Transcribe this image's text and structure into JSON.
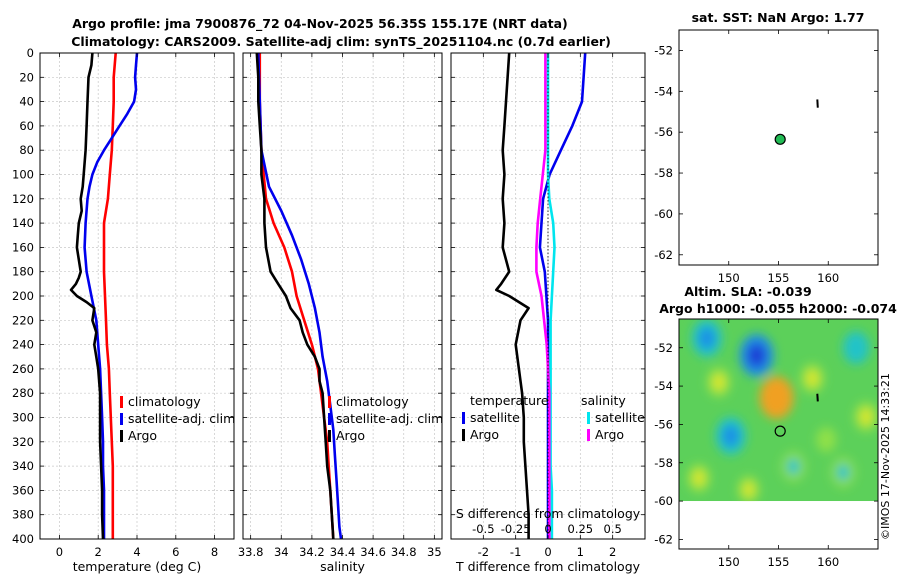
{
  "title_line1": "Argo profile: jma 7900876_72 04-Nov-2025 56.35S 155.17E (NRT data)",
  "title_line2": "Climatology: CARS2009. Satellite-adj clim: synTS_20251104.nc (0.7d earlier)",
  "stamp": "©IMOS 17-Nov-2025 14:33:21",
  "colors": {
    "climatology": "#ff0000",
    "satellite": "#0000ee",
    "argo": "#000000",
    "sal_satellite": "#00e5ee",
    "sal_argo": "#ff00ff",
    "marker": "#22bb55"
  },
  "chart_data": [
    {
      "type": "line",
      "id": "temperature",
      "xlabel": "temperature (deg C)",
      "ylabel": "",
      "xlim": [
        -1,
        9
      ],
      "ylim": [
        400,
        0
      ],
      "xticks": [
        0,
        2,
        4,
        6,
        8
      ],
      "xtick_labels": [
        "0",
        "2",
        "4",
        "6",
        "8"
      ],
      "yticks": [
        0,
        20,
        40,
        60,
        80,
        100,
        120,
        140,
        160,
        180,
        200,
        220,
        240,
        260,
        280,
        300,
        320,
        340,
        360,
        380,
        400
      ],
      "ytick_labels": [
        "0",
        "20",
        "40",
        "60",
        "80",
        "100",
        "120",
        "140",
        "160",
        "180",
        "200",
        "220",
        "240",
        "260",
        "280",
        "300",
        "320",
        "340",
        "360",
        "380",
        "400"
      ],
      "legend": [
        "climatology",
        "satellite-adj. clim",
        "Argo"
      ],
      "series": [
        {
          "name": "climatology",
          "color": "#ff0000",
          "depth": [
            0,
            20,
            40,
            60,
            80,
            100,
            120,
            140,
            160,
            180,
            200,
            220,
            240,
            260,
            280,
            300,
            320,
            340,
            360,
            380,
            400
          ],
          "values": [
            2.9,
            2.8,
            2.8,
            2.75,
            2.7,
            2.6,
            2.5,
            2.3,
            2.3,
            2.3,
            2.35,
            2.4,
            2.45,
            2.55,
            2.6,
            2.65,
            2.7,
            2.75,
            2.75,
            2.75,
            2.75
          ]
        },
        {
          "name": "satellite-adj. clim",
          "color": "#0000ee",
          "depth": [
            0,
            10,
            20,
            30,
            40,
            50,
            60,
            70,
            80,
            90,
            100,
            110,
            120,
            140,
            160,
            180,
            200,
            220,
            240,
            260,
            280,
            300,
            320,
            340,
            360,
            380,
            400
          ],
          "values": [
            4.0,
            3.95,
            3.9,
            3.95,
            3.85,
            3.5,
            3.1,
            2.7,
            2.3,
            1.95,
            1.7,
            1.55,
            1.45,
            1.35,
            1.3,
            1.4,
            1.65,
            1.9,
            2.0,
            2.1,
            2.15,
            2.2,
            2.25,
            2.25,
            2.3,
            2.3,
            2.3
          ]
        },
        {
          "name": "Argo",
          "color": "#000000",
          "depth": [
            0,
            10,
            20,
            40,
            60,
            80,
            100,
            110,
            120,
            130,
            140,
            150,
            160,
            170,
            180,
            185,
            190,
            195,
            200,
            205,
            210,
            220,
            230,
            240,
            250,
            260,
            280,
            300,
            320,
            340,
            360,
            380,
            400
          ],
          "values": [
            1.7,
            1.65,
            1.5,
            1.45,
            1.4,
            1.35,
            1.25,
            1.2,
            1.1,
            1.15,
            1.0,
            0.95,
            0.9,
            1.0,
            1.1,
            1.0,
            0.85,
            0.6,
            0.9,
            1.4,
            1.8,
            1.7,
            1.9,
            1.8,
            1.9,
            2.0,
            2.1,
            2.1,
            2.1,
            2.15,
            2.2,
            2.2,
            2.25
          ]
        }
      ]
    },
    {
      "type": "line",
      "id": "salinity",
      "xlabel": "salinity",
      "xlim": [
        33.75,
        35.05
      ],
      "ylim": [
        400,
        0
      ],
      "xticks": [
        33.8,
        34,
        34.2,
        34.4,
        34.6,
        34.8,
        35
      ],
      "xtick_labels": [
        "33.8",
        "34",
        "34.2",
        "34.4",
        "34.6",
        "34.8",
        "35"
      ],
      "legend": [
        "climatology",
        "satellite-adj. clim",
        "Argo"
      ],
      "series": [
        {
          "name": "climatology",
          "color": "#ff0000",
          "depth": [
            0,
            40,
            80,
            120,
            140,
            160,
            180,
            200,
            220,
            240,
            260,
            280,
            300,
            320,
            340,
            360,
            380,
            400
          ],
          "values": [
            33.86,
            33.86,
            33.87,
            33.9,
            33.95,
            34.02,
            34.07,
            34.1,
            34.15,
            34.2,
            34.24,
            34.26,
            34.28,
            34.3,
            34.31,
            34.32,
            34.33,
            34.34
          ]
        },
        {
          "name": "satellite-adj. clim",
          "color": "#0000ee",
          "depth": [
            0,
            40,
            80,
            110,
            130,
            150,
            170,
            190,
            210,
            230,
            250,
            270,
            290,
            310,
            330,
            350,
            370,
            390,
            400
          ],
          "values": [
            33.85,
            33.86,
            33.87,
            33.92,
            34.0,
            34.07,
            34.13,
            34.18,
            34.22,
            34.25,
            34.27,
            34.3,
            34.32,
            34.34,
            34.35,
            34.36,
            34.37,
            34.38,
            34.39
          ]
        },
        {
          "name": "Argo",
          "color": "#000000",
          "depth": [
            0,
            20,
            40,
            60,
            80,
            100,
            120,
            140,
            160,
            180,
            190,
            200,
            210,
            220,
            230,
            240,
            250,
            260,
            270,
            280,
            300,
            320,
            340,
            360,
            380,
            400
          ],
          "values": [
            33.84,
            33.85,
            33.85,
            33.86,
            33.87,
            33.87,
            33.89,
            33.89,
            33.9,
            33.93,
            33.98,
            34.03,
            34.06,
            34.12,
            34.14,
            34.17,
            34.22,
            34.25,
            34.25,
            34.27,
            34.28,
            34.29,
            34.3,
            34.32,
            34.33,
            34.34
          ]
        }
      ]
    },
    {
      "type": "line",
      "id": "difference",
      "xlabel": "T difference from climatology",
      "x2label": "S difference from climatology",
      "xlim": [
        -3,
        3
      ],
      "ylim": [
        400,
        0
      ],
      "xticks": [
        -2,
        -1,
        0,
        1,
        2
      ],
      "xtick_labels": [
        "-2",
        "-1",
        "0",
        "1",
        "2"
      ],
      "x2ticks": [
        -0.5,
        -0.25,
        0,
        0.25,
        0.5
      ],
      "x2tick_labels": [
        "-0.5",
        "-0.25",
        "0",
        "0.25",
        "0.5"
      ],
      "legend_titles": [
        "temperature",
        "salinity"
      ],
      "legend": [
        "satellite",
        "Argo",
        "satellite",
        "Argo"
      ],
      "series": [
        {
          "name": "T satellite",
          "color": "#0000ee",
          "depth": [
            0,
            20,
            40,
            60,
            80,
            100,
            120,
            140,
            160,
            180,
            200,
            220,
            240,
            260,
            280,
            300,
            400
          ],
          "values": [
            1.15,
            1.1,
            1.05,
            0.75,
            0.4,
            0.05,
            -0.15,
            -0.2,
            -0.25,
            -0.1,
            -0.05,
            0,
            0,
            0,
            0,
            0,
            0
          ]
        },
        {
          "name": "T Argo",
          "color": "#000000",
          "depth": [
            0,
            20,
            40,
            60,
            80,
            100,
            120,
            140,
            160,
            180,
            190,
            195,
            200,
            210,
            220,
            240,
            260,
            280,
            300,
            320,
            340,
            360,
            380,
            400
          ],
          "values": [
            -1.2,
            -1.25,
            -1.3,
            -1.35,
            -1.4,
            -1.35,
            -1.4,
            -1.35,
            -1.4,
            -1.2,
            -1.45,
            -1.6,
            -1.2,
            -0.6,
            -0.85,
            -1.0,
            -0.9,
            -0.8,
            -0.75,
            -0.75,
            -0.7,
            -0.65,
            -0.6,
            -0.6
          ]
        },
        {
          "name": "S satellite",
          "color": "#00e5ee",
          "depth": [
            0,
            40,
            80,
            100,
            120,
            140,
            160,
            180,
            200,
            220,
            240,
            260,
            280,
            300,
            320,
            340,
            360,
            380,
            400
          ],
          "values": [
            0,
            0,
            0,
            0,
            0.01,
            0.04,
            0.05,
            0.04,
            0.03,
            0.02,
            0.02,
            0.02,
            0.02,
            0.02,
            0.02,
            0.02,
            0.03,
            0.03,
            0.03
          ]
        },
        {
          "name": "S Argo",
          "color": "#ff00ff",
          "depth": [
            0,
            40,
            80,
            100,
            120,
            140,
            160,
            180,
            200,
            220,
            240,
            260,
            280,
            300,
            320,
            340,
            360,
            380,
            400
          ],
          "values": [
            -0.02,
            -0.02,
            -0.02,
            -0.04,
            -0.06,
            -0.08,
            -0.09,
            -0.09,
            -0.05,
            -0.03,
            -0.01,
            0,
            0.01,
            0.01,
            0.01,
            0.01,
            0.01,
            0.01,
            0.01
          ]
        }
      ]
    },
    {
      "type": "scatter",
      "id": "sst_map",
      "title": "sat. SST: NaN Argo: 1.77",
      "xlim": [
        145,
        165
      ],
      "ylim": [
        -62.5,
        -51
      ],
      "xticks": [
        150,
        155,
        160
      ],
      "xtick_labels": [
        "150",
        "155",
        "160"
      ],
      "yticks": [
        -52,
        -54,
        -56,
        -58,
        -60,
        -62
      ],
      "ytick_labels": [
        "-52",
        "-54",
        "-56",
        "-58",
        "-60",
        "-62"
      ],
      "argo_position": {
        "lon": 155.17,
        "lat": -56.35
      },
      "track": [
        {
          "lon": 158.9,
          "lat": -54.4
        },
        {
          "lon": 158.95,
          "lat": -54.8
        }
      ]
    },
    {
      "type": "heatmap",
      "id": "sla_map",
      "title1": "Altim. SLA: -0.039",
      "title2": "Argo h1000: -0.055 h2000: -0.074",
      "xlim": [
        145,
        165
      ],
      "ylim": [
        -62.5,
        -50.5
      ],
      "data_extent_lat": [
        -60,
        -50.5
      ],
      "xticks": [
        150,
        155,
        160
      ],
      "xtick_labels": [
        "150",
        "155",
        "160"
      ],
      "yticks": [
        -52,
        -54,
        -56,
        -58,
        -60,
        -62
      ],
      "ytick_labels": [
        "-52",
        "-54",
        "-56",
        "-58",
        "-60",
        "-62"
      ],
      "argo_position": {
        "lon": 155.17,
        "lat": -56.35
      },
      "track": [
        {
          "lon": 158.9,
          "lat": -54.4
        },
        {
          "lon": 158.95,
          "lat": -54.8
        }
      ],
      "blobs": [
        {
          "lon": 152.8,
          "lat": -52.4,
          "value": -0.9
        },
        {
          "lon": 147.8,
          "lat": -51.5,
          "value": -0.7
        },
        {
          "lon": 150.2,
          "lat": -56.6,
          "value": -0.7
        },
        {
          "lon": 162.8,
          "lat": -52.0,
          "value": -0.5
        },
        {
          "lon": 156.5,
          "lat": -58.2,
          "value": -0.4
        },
        {
          "lon": 161.5,
          "lat": -58.5,
          "value": -0.4
        },
        {
          "lon": 154.8,
          "lat": -54.6,
          "value": 0.9
        },
        {
          "lon": 149.0,
          "lat": -53.8,
          "value": 0.4
        },
        {
          "lon": 158.4,
          "lat": -53.6,
          "value": 0.4
        },
        {
          "lon": 147.0,
          "lat": -58.8,
          "value": 0.35
        },
        {
          "lon": 163.8,
          "lat": -55.6,
          "value": 0.4
        },
        {
          "lon": 159.8,
          "lat": -56.8,
          "value": 0.2
        },
        {
          "lon": 152.0,
          "lat": -59.4,
          "value": 0.3
        }
      ]
    }
  ]
}
